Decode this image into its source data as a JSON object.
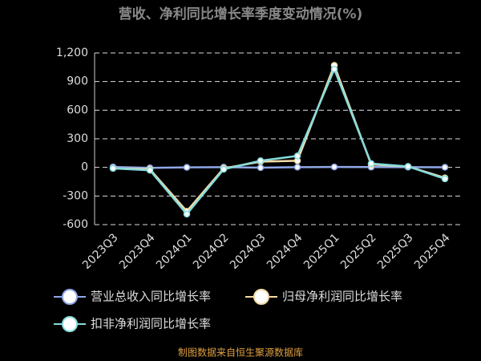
{
  "chart_data": {
    "type": "line",
    "title": "营收、净利同比增长率季度变动情况(%)",
    "categories": [
      "2023Q3",
      "2023Q4",
      "2024Q1",
      "2024Q2",
      "2024Q3",
      "2024Q4",
      "2025Q1",
      "2025Q2",
      "2025Q3",
      "2025Q4"
    ],
    "series": [
      {
        "name": "营业总收入同比增长率",
        "color": "#8fa8e8",
        "values": [
          5,
          -5,
          0,
          2,
          -3,
          2,
          5,
          3,
          2,
          1
        ]
      },
      {
        "name": "归母净利润同比增长率",
        "color": "#f6dba6",
        "values": [
          -10,
          -20,
          -460,
          -10,
          60,
          70,
          1070,
          30,
          10,
          -110
        ]
      },
      {
        "name": "扣非净利润同比增长率",
        "color": "#86dcdc",
        "values": [
          -10,
          -30,
          -490,
          -20,
          70,
          120,
          1030,
          40,
          10,
          -120
        ]
      }
    ],
    "ylim": [
      -600,
      1200
    ],
    "yticks": [
      -600,
      -300,
      0,
      300,
      600,
      900,
      {
        "value": 1200,
        "label": "1,200"
      }
    ],
    "grid": true,
    "source": "制图数据来自恒生聚源数据库"
  }
}
